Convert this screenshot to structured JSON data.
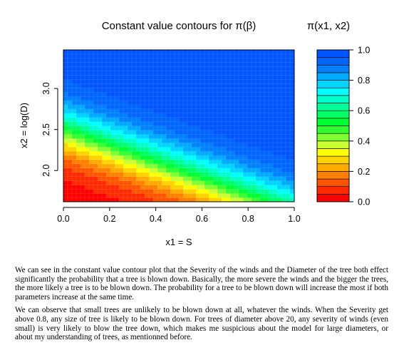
{
  "chart_data": {
    "type": "heatmap",
    "subtype": "filled-contour",
    "title": "Constant value contours for π(β)",
    "legend_title": "π(x1, x2)",
    "xlabel": "x1 = S",
    "ylabel": "x2 = log(D)",
    "xlim": [
      0.0,
      1.0
    ],
    "ylim": [
      1.62,
      3.47
    ],
    "x_ticks": [
      "0.0",
      "0.2",
      "0.4",
      "0.6",
      "0.8",
      "1.0"
    ],
    "x_tick_values": [
      0.0,
      0.2,
      0.4,
      0.6,
      0.8,
      1.0
    ],
    "y_ticks": [
      "2.0",
      "2.5",
      "3.0"
    ],
    "y_tick_values": [
      2.0,
      2.5,
      3.0
    ],
    "zlim": [
      0.0,
      1.0
    ],
    "z_ticks": [
      "0.0",
      "0.2",
      "0.4",
      "0.6",
      "0.8",
      "1.0"
    ],
    "z_tick_values": [
      0.0,
      0.2,
      0.4,
      0.6,
      0.8,
      1.0
    ],
    "levels": [
      0.0,
      0.05,
      0.1,
      0.15,
      0.2,
      0.25,
      0.3,
      0.35,
      0.4,
      0.45,
      0.5,
      0.55,
      0.6,
      0.65,
      0.7,
      0.75,
      0.8,
      0.85,
      0.9,
      0.95,
      1.0
    ],
    "level_colors": [
      "#ff0000",
      "#ff2a00",
      "#ff5500",
      "#ff8000",
      "#ffaa00",
      "#ffd400",
      "#ffff00",
      "#ccff33",
      "#80ff33",
      "#33ff33",
      "#00ff33",
      "#00ff66",
      "#00ff99",
      "#00ffcc",
      "#00ffff",
      "#00d4ff",
      "#00aaff",
      "#0080ff",
      "#0066ff",
      "#0055ff"
    ],
    "model": {
      "form": "logistic",
      "intercept": -12.0,
      "coef_x1": 4.8,
      "coef_x2": 4.8
    },
    "grid": true,
    "legend_position": "right"
  },
  "text": {
    "paragraph1": "We can see in the constant value contour plot that the Severity of the winds and the Diameter of the tree both effect significantly the probability that a tree is blown down. Basically, the more severe the winds and the bigger the trees, the more likely a tree is to be blown down. The probability for a tree to be blown down will increase the most if both parameters increase at the same time.",
    "paragraph2": "We can observe that small trees are unlikely to be blown down at all, whatever the winds. When the Severity get above 0.8, any size of tree is likely to be blown down. For trees of diameter above 20, any severity of winds (even small) is very likely to blow the tree down, which makes me suspicious about the model for large diameters, or about my understanding of trees, as mentionned before."
  }
}
